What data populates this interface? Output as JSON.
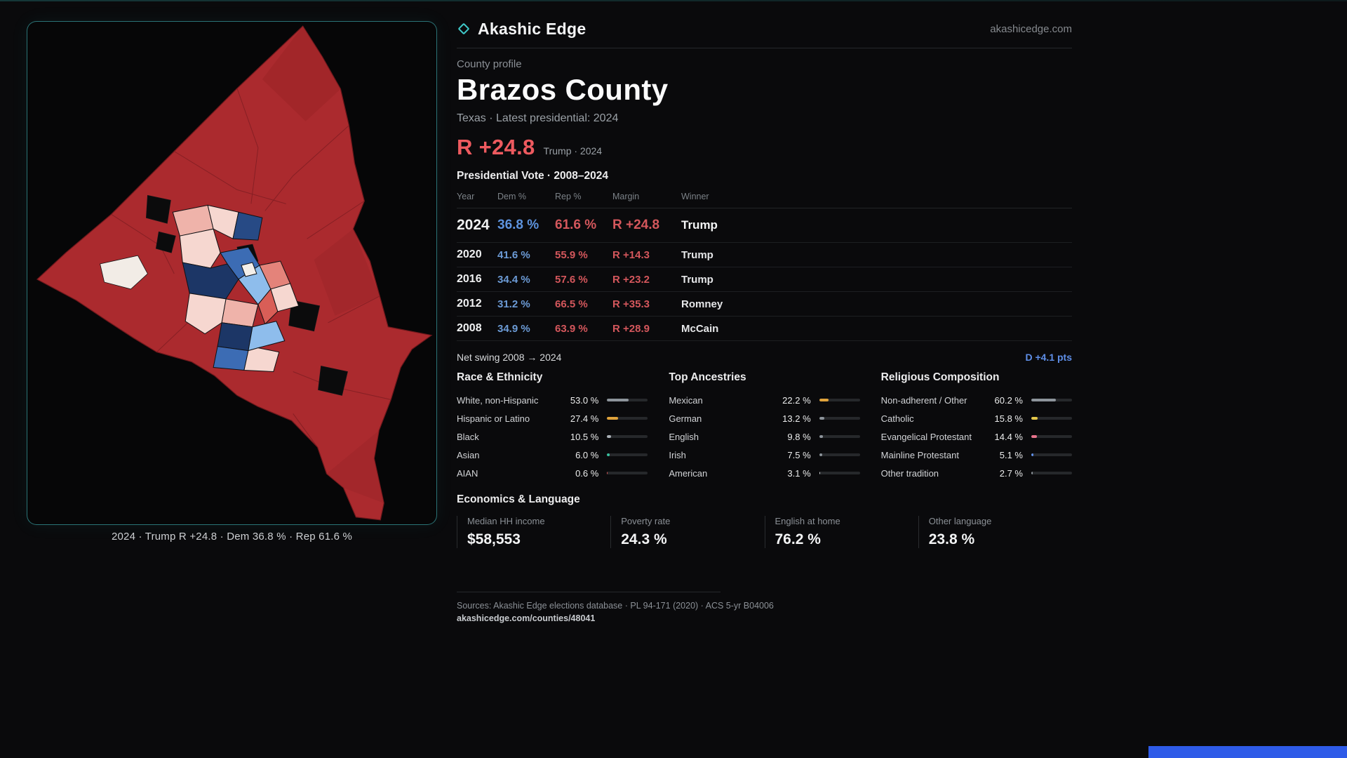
{
  "colors": {
    "accent_teal": "#3fc9c9",
    "rep_red": "#d4575c",
    "headline_red": "#ee5a5f",
    "dem_blue": "#6c9bd6",
    "swing_blue": "#5f8fe8",
    "map_red": "#ab2a2e",
    "accent_bar_blue": "#2e5be8"
  },
  "header": {
    "brand": "Akashic Edge",
    "site": "akashicedge.com"
  },
  "map": {
    "caption": "2024 · Trump R +24.8 · Dem 36.8 % · Rep 61.6 %"
  },
  "profile": {
    "eyebrow": "County profile",
    "title": "Brazos County",
    "subtitle": "Texas · Latest presidential: 2024",
    "margin_value": "R +24.8",
    "margin_note": "Trump · 2024"
  },
  "vote_table": {
    "title": "Presidential Vote · 2008–2024",
    "columns": {
      "year": "Year",
      "dem": "Dem %",
      "rep": "Rep %",
      "margin": "Margin",
      "winner": "Winner"
    },
    "rows": [
      {
        "year": "2024",
        "dem": "36.8 %",
        "rep": "61.6 %",
        "margin": "R +24.8",
        "winner": "Trump"
      },
      {
        "year": "2020",
        "dem": "41.6 %",
        "rep": "55.9 %",
        "margin": "R +14.3",
        "winner": "Trump"
      },
      {
        "year": "2016",
        "dem": "34.4 %",
        "rep": "57.6 %",
        "margin": "R +23.2",
        "winner": "Trump"
      },
      {
        "year": "2012",
        "dem": "31.2 %",
        "rep": "66.5 %",
        "margin": "R +35.3",
        "winner": "Romney"
      },
      {
        "year": "2008",
        "dem": "34.9 %",
        "rep": "63.9 %",
        "margin": "R +28.9",
        "winner": "McCain"
      }
    ],
    "net_swing_label": "Net swing 2008 → 2024",
    "net_swing_value": "D +4.1 pts"
  },
  "demographics": {
    "race": {
      "title": "Race & Ethnicity",
      "items": [
        {
          "label": "White, non-Hispanic",
          "value": "53.0 %",
          "pct": 53.0,
          "color": "#8d949b"
        },
        {
          "label": "Hispanic or Latino",
          "value": "27.4 %",
          "pct": 27.4,
          "color": "#e0a33c"
        },
        {
          "label": "Black",
          "value": "10.5 %",
          "pct": 10.5,
          "color": "#aab0b6"
        },
        {
          "label": "Asian",
          "value": "6.0 %",
          "pct": 6.0,
          "color": "#39c2a0"
        },
        {
          "label": "AIAN",
          "value": "0.6 %",
          "pct": 0.6,
          "color": "#d95555"
        }
      ]
    },
    "ancestries": {
      "title": "Top Ancestries",
      "items": [
        {
          "label": "Mexican",
          "value": "22.2 %",
          "pct": 22.2,
          "color": "#e0a33c"
        },
        {
          "label": "German",
          "value": "13.2 %",
          "pct": 13.2,
          "color": "#8d949b"
        },
        {
          "label": "English",
          "value": "9.8 %",
          "pct": 9.8,
          "color": "#8d949b"
        },
        {
          "label": "Irish",
          "value": "7.5 %",
          "pct": 7.5,
          "color": "#8d949b"
        },
        {
          "label": "American",
          "value": "3.1 %",
          "pct": 3.1,
          "color": "#d5d8db"
        }
      ]
    },
    "religion": {
      "title": "Religious Composition",
      "items": [
        {
          "label": "Non-adherent / Other",
          "value": "60.2 %",
          "pct": 60.2,
          "color": "#8d949b"
        },
        {
          "label": "Catholic",
          "value": "15.8 %",
          "pct": 15.8,
          "color": "#e5c84a"
        },
        {
          "label": "Evangelical Protestant",
          "value": "14.4 %",
          "pct": 14.4,
          "color": "#e8738c"
        },
        {
          "label": "Mainline Protestant",
          "value": "5.1 %",
          "pct": 5.1,
          "color": "#5f8fe8"
        },
        {
          "label": "Other tradition",
          "value": "2.7 %",
          "pct": 2.7,
          "color": "#8d949b"
        }
      ]
    }
  },
  "economics": {
    "title": "Economics & Language",
    "stats": [
      {
        "label": "Median HH income",
        "value": "$58,553"
      },
      {
        "label": "Poverty rate",
        "value": "24.3 %"
      },
      {
        "label": "English at home",
        "value": "76.2 %"
      },
      {
        "label": "Other language",
        "value": "23.8 %"
      }
    ]
  },
  "footer": {
    "sources": "Sources: Akashic Edge elections database · PL 94-171 (2020) · ACS 5-yr B04006",
    "permalink": "akashicedge.com/counties/48041"
  }
}
